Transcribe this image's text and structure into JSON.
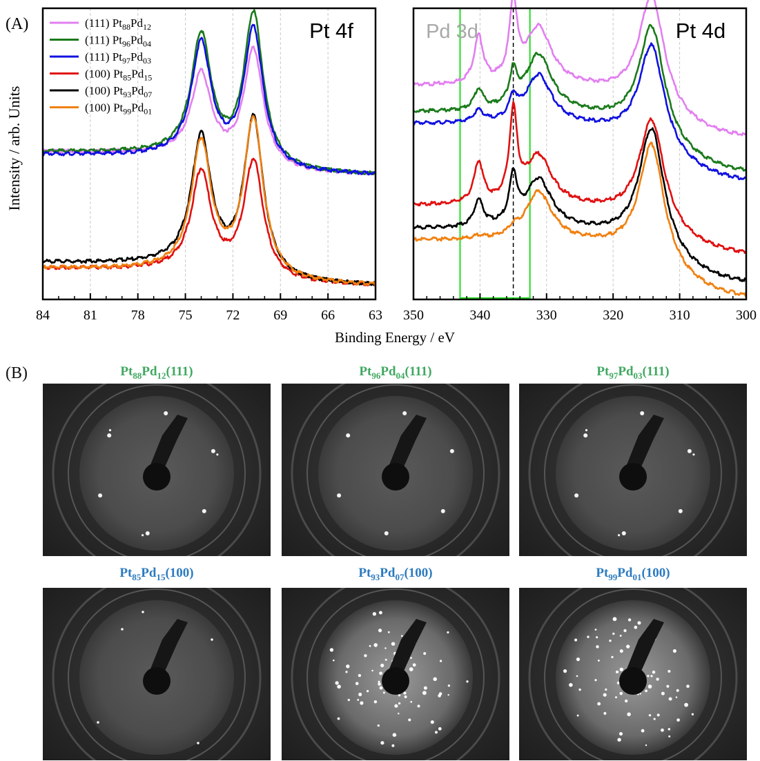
{
  "panel_a_label": "(A)",
  "panel_b_label": "(B)",
  "ylabel": "Intensity / arb. Units",
  "xlabel": "Binding Energy / eV",
  "legend": [
    {
      "face": "(111)",
      "base": "Pt",
      "sub1": "88",
      "mid": "Pd",
      "sub2": "12",
      "color": "#e27ff0"
    },
    {
      "face": "(111)",
      "base": "Pt",
      "sub1": "96",
      "mid": "Pd",
      "sub2": "04",
      "color": "#1a7a1a"
    },
    {
      "face": "(111)",
      "base": "Pt",
      "sub1": "97",
      "mid": "Pd",
      "sub2": "03",
      "color": "#1010e0"
    },
    {
      "face": "(100)",
      "base": "Pt",
      "sub1": "85",
      "mid": "Pd",
      "sub2": "15",
      "color": "#e01010"
    },
    {
      "face": "(100)",
      "base": "Pt",
      "sub1": "93",
      "mid": "Pd",
      "sub2": "07",
      "color": "#000000"
    },
    {
      "face": "(100)",
      "base": "Pt",
      "sub1": "99",
      "mid": "Pd",
      "sub2": "01",
      "color": "#f08010"
    }
  ],
  "chart_data": [
    {
      "type": "line",
      "title": "Pt 4f",
      "xlim": [
        84,
        63
      ],
      "ylim": [
        0,
        1
      ],
      "xticks": [
        84,
        81,
        78,
        75,
        72,
        69,
        66,
        63
      ],
      "grid": "vertical dashed",
      "peaks": [
        {
          "center": 74.0,
          "width": 0.75
        },
        {
          "center": 70.7,
          "width": 0.75
        }
      ],
      "series": [
        {
          "name": "(111) Pt88Pd12",
          "color": "#e27ff0",
          "peak_heights": [
            0.75,
            0.84
          ],
          "baseline_high": 0.49,
          "baseline_low": 0.43
        },
        {
          "name": "(111) Pt96Pd04",
          "color": "#1a7a1a",
          "peak_heights": [
            0.88,
            0.96
          ],
          "baseline_high": 0.49,
          "baseline_low": 0.43
        },
        {
          "name": "(111) Pt97Pd03",
          "color": "#1010e0",
          "peak_heights": [
            0.85,
            0.91
          ],
          "baseline_high": 0.48,
          "baseline_low": 0.43
        },
        {
          "name": "(100) Pt85Pd15",
          "color": "#e01010",
          "peak_heights": [
            0.41,
            0.46
          ],
          "baseline_high": 0.09,
          "baseline_low": 0.05
        },
        {
          "name": "(100) Pt93Pd07",
          "color": "#000000",
          "peak_heights": [
            0.53,
            0.6
          ],
          "baseline_high": 0.11,
          "baseline_low": 0.05
        },
        {
          "name": "(100) Pt99Pd01",
          "color": "#f08010",
          "peak_heights": [
            0.51,
            0.6
          ],
          "baseline_high": 0.09,
          "baseline_low": 0.05
        }
      ]
    },
    {
      "type": "line",
      "title": "Pt 4d",
      "annotation": "Pd 3d",
      "xlim": [
        350,
        300
      ],
      "ylim": [
        0,
        1
      ],
      "xticks": [
        350,
        340,
        330,
        320,
        310,
        300
      ],
      "grid": "vertical dashed",
      "reference_line_x": 335,
      "highlight_range": [
        343,
        332.5
      ],
      "series": [
        {
          "name": "(111) Pt88Pd12",
          "color": "#e27ff0",
          "baseline_high": 0.72,
          "baseline_low": 0.55,
          "pd_340": 0.16,
          "pd_335": 0.26,
          "pt_331": 0.2,
          "pt_314": 0.39
        },
        {
          "name": "(111) Pt96Pd04",
          "color": "#1a7a1a",
          "baseline_high": 0.63,
          "baseline_low": 0.43,
          "pd_340": 0.07,
          "pd_335": 0.11,
          "pt_331": 0.2,
          "pt_314": 0.39
        },
        {
          "name": "(111) Pt97Pd03",
          "color": "#1010e0",
          "baseline_high": 0.59,
          "baseline_low": 0.4,
          "pd_340": 0.04,
          "pd_335": 0.07,
          "pt_331": 0.17,
          "pt_314": 0.36
        },
        {
          "name": "(100) Pt85Pd15",
          "color": "#e01010",
          "baseline_high": 0.31,
          "baseline_low": 0.15,
          "pd_340": 0.14,
          "pd_335": 0.3,
          "pt_331": 0.17,
          "pt_314": 0.37
        },
        {
          "name": "(100) Pt93Pd07",
          "color": "#000000",
          "baseline_high": 0.23,
          "baseline_low": 0.05,
          "pd_340": 0.09,
          "pd_335": 0.16,
          "pt_331": 0.17,
          "pt_314": 0.43
        },
        {
          "name": "(100) Pt99Pd01",
          "color": "#f08010",
          "baseline_high": 0.19,
          "baseline_low": 0.0,
          "pd_340": 0.01,
          "pd_335": 0.02,
          "pt_331": 0.17,
          "pt_314": 0.42
        }
      ]
    }
  ],
  "leed": [
    {
      "base": "Pt",
      "sub1": "88",
      "mid": "Pd",
      "sub2": "12",
      "face": "(111)",
      "color": "#3fa860",
      "pattern": "hex-sparse"
    },
    {
      "base": "Pt",
      "sub1": "96",
      "mid": "Pd",
      "sub2": "04",
      "face": "(111)",
      "color": "#3fa860",
      "pattern": "hex-faint"
    },
    {
      "base": "Pt",
      "sub1": "97",
      "mid": "Pd",
      "sub2": "03",
      "face": "(111)",
      "color": "#3fa860",
      "pattern": "hex-sparse"
    },
    {
      "base": "Pt",
      "sub1": "85",
      "mid": "Pd",
      "sub2": "15",
      "face": "(100)",
      "color": "#2c7bbf",
      "pattern": "square-sparse"
    },
    {
      "base": "Pt",
      "sub1": "93",
      "mid": "Pd",
      "sub2": "07",
      "face": "(100)",
      "color": "#2c7bbf",
      "pattern": "reconstructed"
    },
    {
      "base": "Pt",
      "sub1": "99",
      "mid": "Pd",
      "sub2": "01",
      "face": "(100)",
      "color": "#2c7bbf",
      "pattern": "reconstructed"
    }
  ]
}
